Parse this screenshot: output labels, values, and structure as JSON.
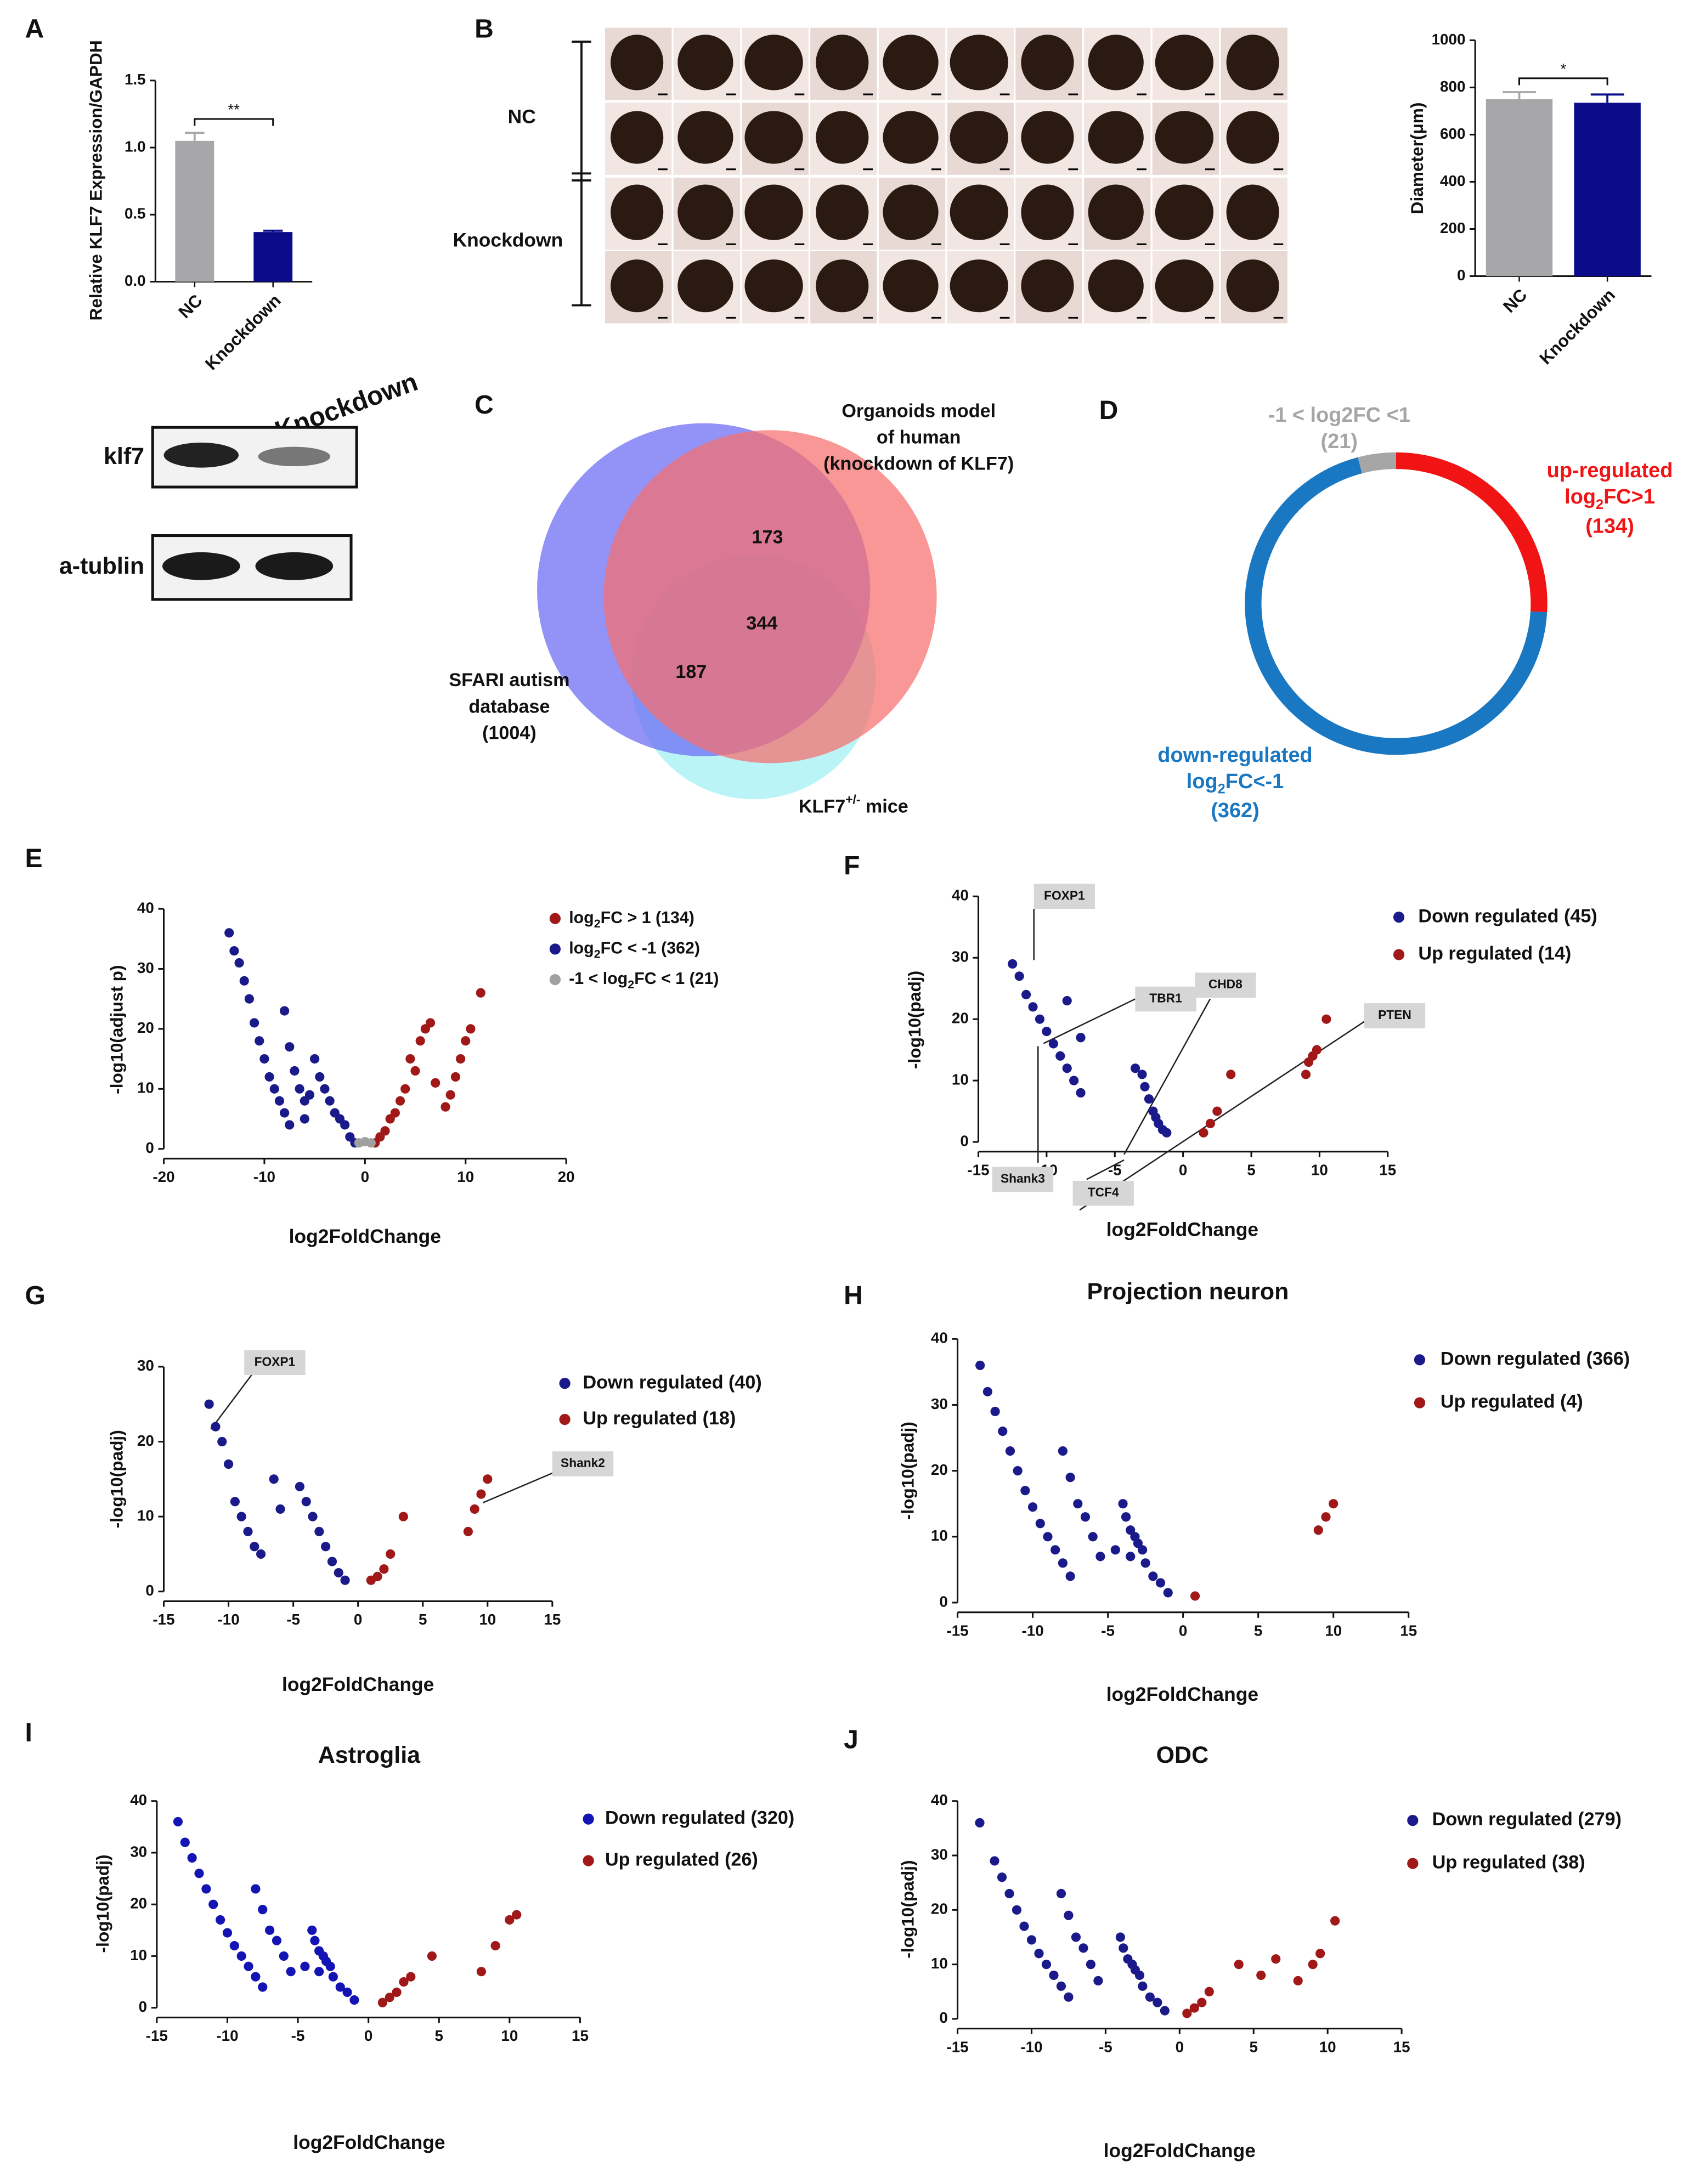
{
  "chart_data": [
    {
      "type": "bar",
      "panel": "A",
      "ylabel": "Relative KLF7 Expression/GAPDH",
      "categories": [
        "NC",
        "Knockdown"
      ],
      "values": [
        1.05,
        0.37
      ],
      "errors": [
        0.06,
        0.01
      ],
      "colors": [
        "#a7a7a9",
        "#0c0c8a"
      ],
      "ylim": [
        0,
        1.5
      ],
      "yticks": [
        {
          "value": 0,
          "label": "0.0"
        },
        0.5,
        {
          "value": 1,
          "label": "1.0"
        },
        1.5
      ],
      "annotation": "**"
    },
    {
      "type": "bar",
      "panel": "B",
      "ylabel": "Diameter(μm)",
      "categories": [
        "NC",
        "Knockdown"
      ],
      "values": [
        750,
        735
      ],
      "errors": [
        30,
        35
      ],
      "colors": [
        "#a7a7a9",
        "#0c0c8a"
      ],
      "ylim": [
        0,
        1000
      ],
      "yticks": [
        0,
        200,
        400,
        600,
        800,
        1000
      ],
      "annotation": "*"
    },
    {
      "type": "venn",
      "panel": "C",
      "sets": [
        {
          "label": [
            "SFARI  autism",
            "database",
            "(1004)"
          ],
          "color": "#6a6af4"
        },
        {
          "label": [
            "Organoids model",
            "of human",
            "(knockdown of KLF7)"
          ],
          "color": "#f76e6e"
        },
        {
          "label": [
            "KLF7",
            "+/-",
            " mice"
          ],
          "color": "#9ff0f2"
        }
      ],
      "regions": [
        173,
        344,
        187
      ]
    },
    {
      "type": "donut",
      "panel": "D",
      "series": [
        {
          "name": [
            "up-regulated",
            "log",
            "2",
            "FC>1"
          ],
          "color": "#f01414",
          "value": 134,
          "value_label": "(134)"
        },
        {
          "name": [
            "down-regulated",
            "log",
            "2",
            "FC<-1"
          ],
          "color": "#1a78c2",
          "value": 362,
          "value_label": "(362)"
        },
        {
          "name": [
            "-1 < log2FC <1"
          ],
          "color": "#a6a6a6",
          "value": 21,
          "value_label": "(21)"
        }
      ]
    },
    {
      "type": "scatter",
      "panel": "E",
      "xlabel": "log2FoldChange",
      "ylabel": "-log10(adjust p)",
      "xlim": [
        -20,
        20
      ],
      "xticks": [
        -20,
        -10,
        0,
        10,
        20
      ],
      "ylim": [
        0,
        40
      ],
      "yticks": [
        0,
        10,
        20,
        30,
        40
      ],
      "series": [
        {
          "name": [
            "log",
            "2",
            "FC > 1 (134)"
          ],
          "color": "#a01818",
          "x": [
            1,
            1.5,
            2,
            2.5,
            3,
            3.5,
            4,
            4.5,
            5,
            5.5,
            6,
            6.5,
            7,
            8,
            8.5,
            9,
            9.5,
            10,
            10.5,
            11.5
          ],
          "y": [
            1,
            2,
            3,
            5,
            6,
            8,
            10,
            15,
            13,
            18,
            20,
            21,
            11,
            7,
            9,
            12,
            15,
            18,
            20,
            26
          ]
        },
        {
          "name": [
            "log",
            "2",
            "FC < -1 (362)"
          ],
          "color": "#1a1a8a",
          "x": [
            -13.5,
            -13,
            -12.5,
            -12,
            -11.5,
            -11,
            -10.5,
            -10,
            -9.5,
            -9,
            -8.5,
            -8,
            -7.5,
            -8,
            -7.5,
            -7,
            -6.5,
            -6,
            -5.5,
            -5,
            -4.5,
            -4,
            -3.5,
            -3,
            -2.5,
            -2,
            -1.5,
            -1,
            -6
          ],
          "y": [
            36,
            33,
            31,
            28,
            25,
            21,
            18,
            15,
            12,
            10,
            8,
            6,
            4,
            23,
            17,
            13,
            10,
            5,
            9,
            15,
            12,
            10,
            8,
            6,
            5,
            4,
            2,
            1,
            8
          ]
        },
        {
          "name": [
            "-1 < log",
            "2",
            "FC < 1 (21)"
          ],
          "color": "#a0a0a0",
          "x": [
            -0.6,
            0,
            0.6
          ],
          "y": [
            1,
            1.2,
            1
          ]
        }
      ]
    },
    {
      "type": "scatter",
      "panel": "F",
      "xlabel": "log2FoldChange",
      "ylabel": "-log10(padj)",
      "xlim": [
        -15,
        15
      ],
      "xticks": [
        -15,
        -10,
        -5,
        0,
        5,
        10,
        15
      ],
      "ylim": [
        0,
        40
      ],
      "yticks": [
        0,
        10,
        20,
        30,
        40
      ],
      "annotations": [
        "FOXP1",
        "TBR1",
        "CHD8",
        "PTEN",
        "Shank3",
        "TCF4"
      ],
      "series": [
        {
          "name": "Down regulated (45)",
          "color": "#1a1a8a",
          "x": [
            -12.5,
            -12,
            -11.5,
            -11,
            -10.5,
            -10,
            -9.5,
            -9,
            -8.5,
            -8,
            -7.5,
            -8.5,
            -7.5,
            -3.5,
            -3,
            -2.8,
            -2.5,
            -2.2,
            -2,
            -1.8,
            -1.5,
            -1.2
          ],
          "y": [
            29,
            27,
            24,
            22,
            20,
            18,
            16,
            14,
            12,
            10,
            8,
            23,
            17,
            12,
            11,
            9,
            7,
            5,
            4,
            3,
            2,
            1.5
          ]
        },
        {
          "name": "Up regulated (14)",
          "color": "#a01818",
          "x": [
            1.5,
            2,
            2.5,
            3.5,
            9,
            9.2,
            9.5,
            9.8,
            10.5
          ],
          "y": [
            1.5,
            3,
            5,
            11,
            11,
            13,
            14,
            15,
            20
          ]
        }
      ]
    },
    {
      "type": "scatter",
      "panel": "G",
      "xlabel": "log2FoldChange",
      "ylabel": "-log10(padj)",
      "xlim": [
        -15,
        15
      ],
      "xticks": [
        -15,
        -10,
        -5,
        0,
        5,
        10,
        15
      ],
      "ylim": [
        0,
        30
      ],
      "yticks": [
        0,
        10,
        20,
        30
      ],
      "annotations": [
        "FOXP1",
        "Shank2"
      ],
      "series": [
        {
          "name": "Down regulated (40)",
          "color": "#1a1a8a",
          "x": [
            -11.5,
            -11,
            -10.5,
            -10,
            -9.5,
            -9,
            -8.5,
            -8,
            -7.5,
            -6.5,
            -6,
            -4.5,
            -4,
            -3.5,
            -3,
            -2.5,
            -2,
            -1.5,
            -1
          ],
          "y": [
            25,
            22,
            20,
            17,
            12,
            10,
            8,
            6,
            5,
            15,
            11,
            14,
            12,
            10,
            8,
            6,
            4,
            2.5,
            1.5
          ]
        },
        {
          "name": "Up regulated (18)",
          "color": "#a01818",
          "x": [
            1,
            1.5,
            2,
            2.5,
            3.5,
            8.5,
            9,
            9.5,
            10
          ],
          "y": [
            1.5,
            2,
            3,
            5,
            10,
            8,
            11,
            13,
            15
          ]
        }
      ]
    },
    {
      "type": "scatter",
      "panel": "H",
      "title": "Projection neuron",
      "xlabel": "log2FoldChange",
      "ylabel": "-log10(padj)",
      "xlim": [
        -15,
        15
      ],
      "xticks": [
        -15,
        -10,
        -5,
        0,
        5,
        10,
        15
      ],
      "ylim": [
        0,
        40
      ],
      "yticks": [
        0,
        10,
        20,
        30,
        40
      ],
      "series": [
        {
          "name": "Down regulated (366)",
          "color": "#1a1a8a",
          "x": [
            -13.5,
            -13,
            -12.5,
            -12,
            -11.5,
            -11,
            -10.5,
            -10,
            -9.5,
            -9,
            -8.5,
            -8,
            -7.5,
            -8,
            -7.5,
            -7,
            -6.5,
            -6,
            -5.5,
            -4,
            -3.8,
            -3.5,
            -3.2,
            -3,
            -2.7,
            -2.5,
            -2,
            -1.5,
            -1,
            -3.5,
            -4.5
          ],
          "y": [
            36,
            32,
            29,
            26,
            23,
            20,
            17,
            14.5,
            12,
            10,
            8,
            6,
            4,
            23,
            19,
            15,
            13,
            10,
            7,
            15,
            13,
            11,
            10,
            9,
            8,
            6,
            4,
            3,
            1.5,
            7,
            8
          ]
        },
        {
          "name": "Up regulated (4)",
          "color": "#a01818",
          "x": [
            0.8,
            9,
            9.5,
            10
          ],
          "y": [
            1,
            11,
            13,
            15
          ]
        }
      ]
    },
    {
      "type": "scatter",
      "panel": "I",
      "title": "Astroglia",
      "xlabel": "log2FoldChange",
      "ylabel": "-log10(padj)",
      "xlim": [
        -15,
        15
      ],
      "xticks": [
        -15,
        -10,
        -5,
        0,
        5,
        10,
        15
      ],
      "ylim": [
        0,
        40
      ],
      "yticks": [
        0,
        10,
        20,
        30,
        40
      ],
      "series": [
        {
          "name": "Down regulated (320)",
          "color": "#1414b4",
          "x": [
            -13.5,
            -13,
            -12.5,
            -12,
            -11.5,
            -11,
            -10.5,
            -10,
            -9.5,
            -9,
            -8.5,
            -8,
            -7.5,
            -8,
            -7.5,
            -7,
            -6.5,
            -6,
            -5.5,
            -4,
            -3.8,
            -3.5,
            -3.2,
            -3,
            -2.7,
            -2.5,
            -2,
            -1.5,
            -1,
            -3.5,
            -4.5
          ],
          "y": [
            36,
            32,
            29,
            26,
            23,
            20,
            17,
            14.5,
            12,
            10,
            8,
            6,
            4,
            23,
            19,
            15,
            13,
            10,
            7,
            15,
            13,
            11,
            10,
            9,
            8,
            6,
            4,
            3,
            1.5,
            7,
            8
          ]
        },
        {
          "name": "Up regulated (26)",
          "color": "#a01818",
          "x": [
            1,
            1.5,
            2,
            2.5,
            3,
            4.5,
            8,
            9,
            10,
            10.5
          ],
          "y": [
            1,
            2,
            3,
            5,
            6,
            10,
            7,
            12,
            17,
            18
          ]
        }
      ]
    },
    {
      "type": "scatter",
      "panel": "J",
      "title": "ODC",
      "xlabel": "log2FoldChange",
      "ylabel": "-log10(padj)",
      "xlim": [
        -15,
        15
      ],
      "xticks": [
        -15,
        -10,
        -5,
        0,
        5,
        10,
        15
      ],
      "ylim": [
        0,
        40
      ],
      "yticks": [
        0,
        10,
        20,
        30,
        40
      ],
      "series": [
        {
          "name": "Down regulated (279)",
          "color": "#1a1a8a",
          "x": [
            -13.5,
            -12.5,
            -12,
            -11.5,
            -11,
            -10.5,
            -10,
            -9.5,
            -9,
            -8.5,
            -8,
            -7.5,
            -8,
            -7.5,
            -7,
            -6.5,
            -6,
            -5.5,
            -4,
            -3.8,
            -3.5,
            -3.2,
            -3,
            -2.7,
            -2.5,
            -2,
            -1.5,
            -1
          ],
          "y": [
            36,
            29,
            26,
            23,
            20,
            17,
            14.5,
            12,
            10,
            8,
            6,
            4,
            23,
            19,
            15,
            13,
            10,
            7,
            15,
            13,
            11,
            10,
            9,
            8,
            6,
            4,
            3,
            1.5
          ]
        },
        {
          "name": "Up regulated (38)",
          "color": "#a01818",
          "x": [
            0.5,
            1,
            1.5,
            2,
            4,
            5.5,
            6.5,
            8,
            9,
            9.5,
            10.5
          ],
          "y": [
            1,
            2,
            3,
            5,
            10,
            8,
            11,
            7,
            10,
            12,
            18
          ]
        }
      ]
    }
  ],
  "blot": {
    "lanes": [
      "NC",
      "Knockdown"
    ],
    "rows": [
      "klf7",
      "a-tublin"
    ]
  },
  "organoids": {
    "groups": [
      "NC",
      "Knockdown"
    ]
  }
}
